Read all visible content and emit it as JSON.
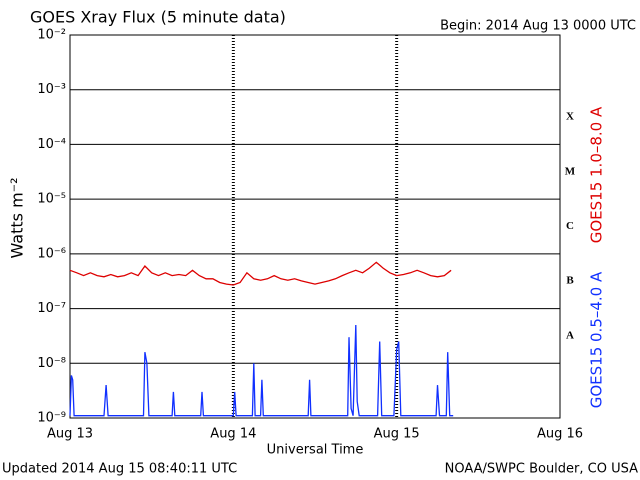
{
  "chart_data": {
    "type": "line",
    "title": "GOES Xray Flux (5 minute data)",
    "subtitle": "Begin:  2014 Aug 13 0000 UTC",
    "ylabel": "Watts m⁻²",
    "xlabel": "Universal Time",
    "footer_left": "Updated 2014 Aug 15 08:40:11 UTC",
    "footer_right": "NOAA/SWPC Boulder, CO USA",
    "log_y": true,
    "grid": true,
    "xlim": [
      0,
      72
    ],
    "xticks": [
      {
        "value": 0,
        "label": "Aug 13"
      },
      {
        "value": 24,
        "label": "Aug 14"
      },
      {
        "value": 48,
        "label": "Aug 15"
      },
      {
        "value": 72,
        "label": "Aug 16"
      }
    ],
    "ylim": [
      1e-09,
      0.01
    ],
    "yticks": [
      {
        "value": 1e-09,
        "label": "10⁻⁹"
      },
      {
        "value": 1e-08,
        "label": "10⁻⁸"
      },
      {
        "value": 1e-07,
        "label": "10⁻⁷"
      },
      {
        "value": 1e-06,
        "label": "10⁻⁶"
      },
      {
        "value": 1e-05,
        "label": "10⁻⁵"
      },
      {
        "value": 0.0001,
        "label": "10⁻⁴"
      },
      {
        "value": 0.001,
        "label": "10⁻³"
      },
      {
        "value": 0.01,
        "label": "10⁻²"
      }
    ],
    "class_labels": [
      {
        "value": 1e-08,
        "label": "A"
      },
      {
        "value": 1e-07,
        "label": "B"
      },
      {
        "value": 1e-06,
        "label": "C"
      },
      {
        "value": 1e-05,
        "label": "M"
      },
      {
        "value": 0.0001,
        "label": "X"
      }
    ],
    "series": [
      {
        "name": "GOES15 1.0–8.0 A",
        "color": "#dd0000",
        "x": [
          0,
          1,
          2,
          3,
          4,
          5,
          6,
          7,
          8,
          9,
          10,
          11,
          12,
          13,
          14,
          15,
          16,
          17,
          18,
          19,
          20,
          21,
          22,
          23,
          24,
          25,
          26,
          27,
          28,
          29,
          30,
          31,
          32,
          33,
          34,
          35,
          36,
          37,
          38,
          39,
          40,
          41,
          42,
          43,
          44,
          45,
          46,
          47,
          48,
          49,
          50,
          51,
          52,
          53,
          54,
          55,
          56
        ],
        "values": [
          5e-07,
          4.5e-07,
          4e-07,
          4.5e-07,
          4e-07,
          3.8e-07,
          4.2e-07,
          3.8e-07,
          4e-07,
          4.5e-07,
          4e-07,
          6e-07,
          4.5e-07,
          4e-07,
          4.5e-07,
          4e-07,
          4.2e-07,
          4e-07,
          5e-07,
          4e-07,
          3.5e-07,
          3.5e-07,
          3e-07,
          2.8e-07,
          2.7e-07,
          3e-07,
          4.5e-07,
          3.5e-07,
          3.3e-07,
          3.5e-07,
          4e-07,
          3.5e-07,
          3.3e-07,
          3.5e-07,
          3.2e-07,
          3e-07,
          2.8e-07,
          3e-07,
          3.2e-07,
          3.5e-07,
          4e-07,
          4.5e-07,
          5e-07,
          4.5e-07,
          5.5e-07,
          7e-07,
          5.5e-07,
          4.5e-07,
          4e-07,
          4.2e-07,
          4.5e-07,
          5e-07,
          4.5e-07,
          4e-07,
          3.8e-07,
          4e-07,
          5e-07
        ]
      },
      {
        "name": "GOES15 0.5–4.0 A",
        "color": "#1030ff",
        "x": [
          0,
          0.2,
          0.4,
          0.6,
          1,
          5,
          5.3,
          5.6,
          10.8,
          11,
          11.3,
          11.6,
          15,
          15.2,
          15.4,
          19.2,
          19.4,
          19.6,
          24,
          24.2,
          24.4,
          26.8,
          27,
          27.2,
          28,
          28.2,
          28.4,
          35,
          35.2,
          35.4,
          40.8,
          41,
          41.3,
          41.6,
          42,
          42.2,
          42.5,
          45.2,
          45.5,
          45.8,
          47.6,
          48,
          48.3,
          48.6,
          53.8,
          54,
          54.3,
          55.3,
          55.5,
          55.8,
          56.3
        ],
        "values": [
          1.1e-09,
          6e-09,
          5e-09,
          1.1e-09,
          1.1e-09,
          1.1e-09,
          4e-09,
          1.1e-09,
          1.1e-09,
          1.6e-08,
          1e-08,
          1.1e-09,
          1.1e-09,
          3e-09,
          1.1e-09,
          1.1e-09,
          3e-09,
          1.1e-09,
          1.1e-09,
          3e-09,
          1.1e-09,
          1.1e-09,
          1e-08,
          1.1e-09,
          1.1e-09,
          5e-09,
          1.1e-09,
          1.1e-09,
          5e-09,
          1.1e-09,
          1.1e-09,
          3e-08,
          1.5e-09,
          1.1e-09,
          5e-08,
          2e-09,
          1.1e-09,
          1.1e-09,
          2.5e-08,
          1.1e-09,
          1.1e-09,
          1.8e-08,
          2.5e-08,
          1.1e-09,
          1.1e-09,
          4e-09,
          1.1e-09,
          1.1e-09,
          1.6e-08,
          1.1e-09,
          1.1e-09
        ]
      }
    ]
  }
}
